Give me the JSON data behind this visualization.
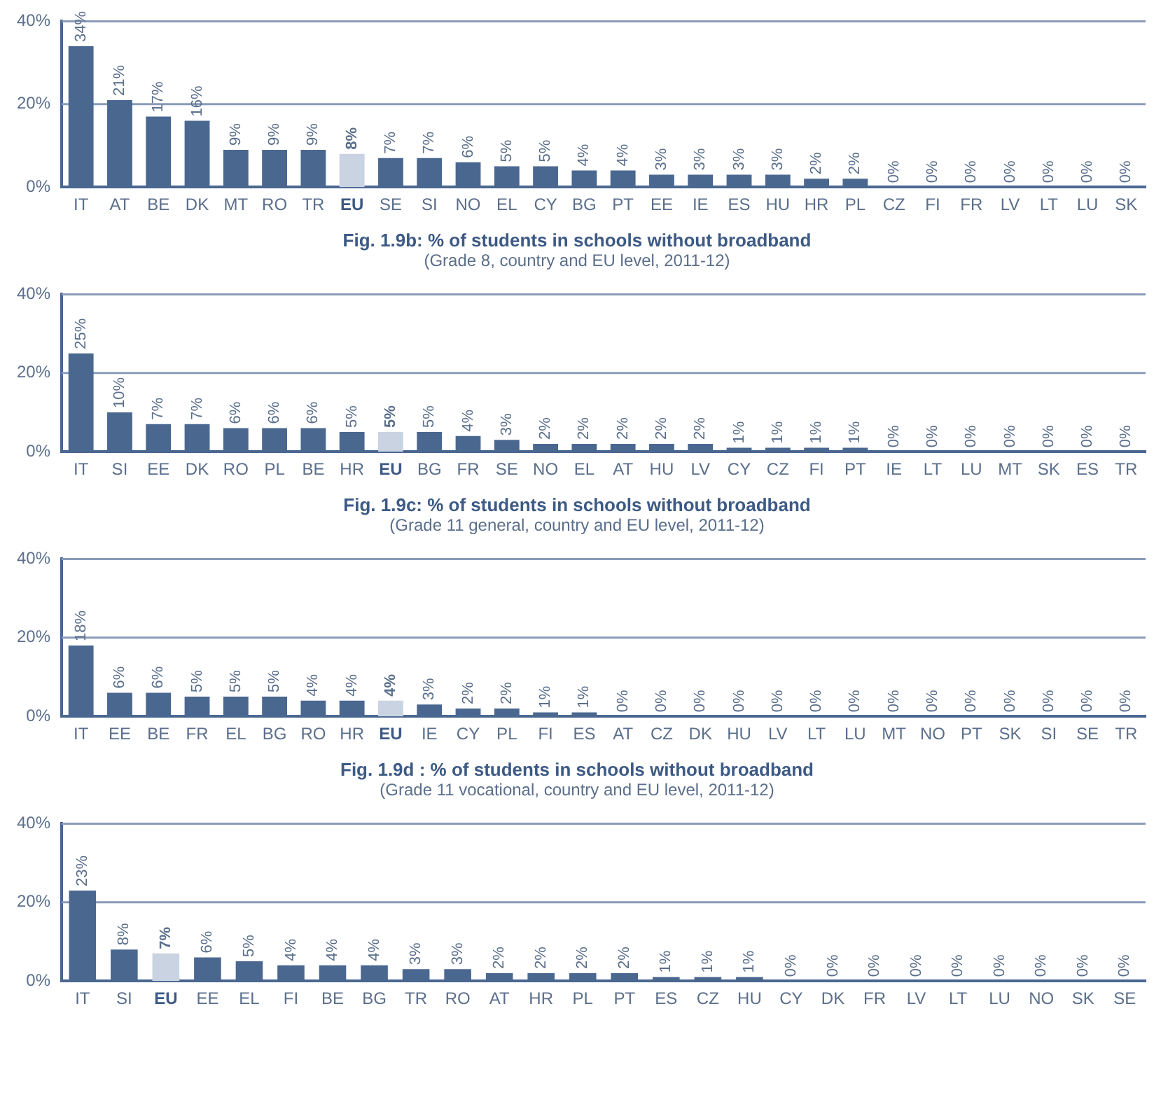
{
  "chart_data": [
    {
      "type": "bar",
      "categories": [
        "IT",
        "AT",
        "BE",
        "DK",
        "MT",
        "RO",
        "TR",
        "EU",
        "SE",
        "SI",
        "NO",
        "EL",
        "CY",
        "BG",
        "PT",
        "EE",
        "IE",
        "ES",
        "HU",
        "HR",
        "PL",
        "CZ",
        "FI",
        "FR",
        "LV",
        "LT",
        "LU",
        "SK"
      ],
      "values": [
        34,
        21,
        17,
        16,
        9,
        9,
        9,
        8,
        7,
        7,
        6,
        5,
        5,
        4,
        4,
        3,
        3,
        3,
        3,
        2,
        2,
        0,
        0,
        0,
        0,
        0,
        0,
        0
      ],
      "value_labels": [
        "34%",
        "21%",
        "17%",
        "16%",
        "9%",
        "9%",
        "9%",
        "8%",
        "7%",
        "7%",
        "6%",
        "5%",
        "5%",
        "4%",
        "4%",
        "3%",
        "3%",
        "3%",
        "3%",
        "2%",
        "2%",
        "0%",
        "0%",
        "0%",
        "0%",
        "0%",
        "0%",
        "0%"
      ],
      "color": "#4a6790",
      "colors": [
        "#4a6790",
        "#4a6790",
        "#4a6790",
        "#4a6790",
        "#4a6790",
        "#4a6790",
        "#4a6790",
        "#c9d3e2",
        "#4a6790",
        "#4a6790",
        "#4a6790",
        "#4a6790",
        "#4a6790",
        "#4a6790",
        "#4a6790",
        "#4a6790",
        "#4a6790",
        "#4a6790",
        "#4a6790",
        "#4a6790",
        "#4a6790",
        "#4a6790",
        "#4a6790",
        "#4a6790",
        "#4a6790",
        "#4a6790",
        "#4a6790",
        "#4a6790"
      ],
      "ylim": [
        0,
        40
      ],
      "yticks": [
        {
          "value": 0,
          "label": "0%"
        },
        {
          "value": 20,
          "label": "20%"
        },
        {
          "value": 40,
          "label": "40%"
        }
      ],
      "ref_lines": [
        {
          "axis": "y",
          "value": 20,
          "color": "#8a9cb8"
        },
        {
          "axis": "y",
          "value": 40,
          "color": "#8a9cb8"
        }
      ]
    },
    {
      "type": "bar",
      "title": "Fig. 1.9b: % of students in schools without broadband",
      "subtitle": "(Grade 8, country and EU level, 2011-12)",
      "categories": [
        "IT",
        "SI",
        "EE",
        "DK",
        "RO",
        "PL",
        "BE",
        "HR",
        "EU",
        "BG",
        "FR",
        "SE",
        "NO",
        "EL",
        "AT",
        "HU",
        "LV",
        "CY",
        "CZ",
        "FI",
        "PT",
        "IE",
        "LT",
        "LU",
        "MT",
        "SK",
        "ES",
        "TR"
      ],
      "values": [
        25,
        10,
        7,
        7,
        6,
        6,
        6,
        5,
        5,
        5,
        4,
        3,
        2,
        2,
        2,
        2,
        2,
        1,
        1,
        1,
        1,
        0,
        0,
        0,
        0,
        0,
        0,
        0
      ],
      "value_labels": [
        "25%",
        "10%",
        "7%",
        "7%",
        "6%",
        "6%",
        "6%",
        "5%",
        "5%",
        "5%",
        "4%",
        "3%",
        "2%",
        "2%",
        "2%",
        "2%",
        "2%",
        "1%",
        "1%",
        "1%",
        "1%",
        "0%",
        "0%",
        "0%",
        "0%",
        "0%",
        "0%",
        "0%"
      ],
      "color": "#4a6790",
      "colors": [
        "#4a6790",
        "#4a6790",
        "#4a6790",
        "#4a6790",
        "#4a6790",
        "#4a6790",
        "#4a6790",
        "#4a6790",
        "#c9d3e2",
        "#4a6790",
        "#4a6790",
        "#4a6790",
        "#4a6790",
        "#4a6790",
        "#4a6790",
        "#4a6790",
        "#4a6790",
        "#4a6790",
        "#4a6790",
        "#4a6790",
        "#4a6790",
        "#4a6790",
        "#4a6790",
        "#4a6790",
        "#4a6790",
        "#4a6790",
        "#4a6790",
        "#4a6790"
      ],
      "ylim": [
        0,
        40
      ],
      "yticks": [
        {
          "value": 0,
          "label": "0%"
        },
        {
          "value": 20,
          "label": "20%"
        },
        {
          "value": 40,
          "label": "40%"
        }
      ],
      "ref_lines": [
        {
          "axis": "y",
          "value": 20,
          "color": "#8a9cb8"
        },
        {
          "axis": "y",
          "value": 40,
          "color": "#8a9cb8"
        }
      ]
    },
    {
      "type": "bar",
      "title": "Fig. 1.9c: % of students in schools without broadband",
      "subtitle": "(Grade 11 general, country and EU level, 2011-12)",
      "categories": [
        "IT",
        "EE",
        "BE",
        "FR",
        "EL",
        "BG",
        "RO",
        "HR",
        "EU",
        "IE",
        "CY",
        "PL",
        "FI",
        "ES",
        "AT",
        "CZ",
        "DK",
        "HU",
        "LV",
        "LT",
        "LU",
        "MT",
        "NO",
        "PT",
        "SK",
        "SI",
        "SE",
        "TR"
      ],
      "values": [
        18,
        6,
        6,
        5,
        5,
        5,
        4,
        4,
        4,
        3,
        2,
        2,
        1,
        1,
        0,
        0,
        0,
        0,
        0,
        0,
        0,
        0,
        0,
        0,
        0,
        0,
        0,
        0
      ],
      "value_labels": [
        "18%",
        "6%",
        "6%",
        "5%",
        "5%",
        "5%",
        "4%",
        "4%",
        "4%",
        "3%",
        "2%",
        "2%",
        "1%",
        "1%",
        "0%",
        "0%",
        "0%",
        "0%",
        "0%",
        "0%",
        "0%",
        "0%",
        "0%",
        "0%",
        "0%",
        "0%",
        "0%",
        "0%"
      ],
      "color": "#4a6790",
      "colors": [
        "#4a6790",
        "#4a6790",
        "#4a6790",
        "#4a6790",
        "#4a6790",
        "#4a6790",
        "#4a6790",
        "#4a6790",
        "#c9d3e2",
        "#4a6790",
        "#4a6790",
        "#4a6790",
        "#4a6790",
        "#4a6790",
        "#4a6790",
        "#4a6790",
        "#4a6790",
        "#4a6790",
        "#4a6790",
        "#4a6790",
        "#4a6790",
        "#4a6790",
        "#4a6790",
        "#4a6790",
        "#4a6790",
        "#4a6790",
        "#4a6790",
        "#4a6790"
      ],
      "ylim": [
        0,
        40
      ],
      "yticks": [
        {
          "value": 0,
          "label": "0%"
        },
        {
          "value": 20,
          "label": "20%"
        },
        {
          "value": 40,
          "label": "40%"
        }
      ],
      "ref_lines": [
        {
          "axis": "y",
          "value": 20,
          "color": "#8a9cb8"
        },
        {
          "axis": "y",
          "value": 40,
          "color": "#8a9cb8"
        }
      ]
    },
    {
      "type": "bar",
      "title": "Fig. 1.9d : % of students in schools without broadband",
      "subtitle": "(Grade 11 vocational, country and EU level, 2011-12)",
      "categories": [
        "IT",
        "SI",
        "EU",
        "EE",
        "EL",
        "FI",
        "BE",
        "BG",
        "TR",
        "RO",
        "AT",
        "HR",
        "PL",
        "PT",
        "ES",
        "CZ",
        "HU",
        "CY",
        "DK",
        "FR",
        "LV",
        "LT",
        "LU",
        "NO",
        "SK",
        "SE"
      ],
      "values": [
        23,
        8,
        7,
        6,
        5,
        4,
        4,
        4,
        3,
        3,
        2,
        2,
        2,
        2,
        1,
        1,
        1,
        0,
        0,
        0,
        0,
        0,
        0,
        0,
        0,
        0
      ],
      "value_labels": [
        "23%",
        "8%",
        "7%",
        "6%",
        "5%",
        "4%",
        "4%",
        "4%",
        "3%",
        "3%",
        "2%",
        "2%",
        "2%",
        "2%",
        "1%",
        "1%",
        "1%",
        "0%",
        "0%",
        "0%",
        "0%",
        "0%",
        "0%",
        "0%",
        "0%",
        "0%"
      ],
      "color": "#4a6790",
      "colors": [
        "#4a6790",
        "#4a6790",
        "#c9d3e2",
        "#4a6790",
        "#4a6790",
        "#4a6790",
        "#4a6790",
        "#4a6790",
        "#4a6790",
        "#4a6790",
        "#4a6790",
        "#4a6790",
        "#4a6790",
        "#4a6790",
        "#4a6790",
        "#4a6790",
        "#4a6790",
        "#4a6790",
        "#4a6790",
        "#4a6790",
        "#4a6790",
        "#4a6790",
        "#4a6790",
        "#4a6790",
        "#4a6790",
        "#4a6790"
      ],
      "ylim": [
        0,
        40
      ],
      "yticks": [
        {
          "value": 0,
          "label": "0%"
        },
        {
          "value": 20,
          "label": "20%"
        },
        {
          "value": 40,
          "label": "40%"
        }
      ],
      "ref_lines": [
        {
          "axis": "y",
          "value": 20,
          "color": "#8a9cb8"
        },
        {
          "axis": "y",
          "value": 40,
          "color": "#8a9cb8"
        }
      ]
    }
  ]
}
